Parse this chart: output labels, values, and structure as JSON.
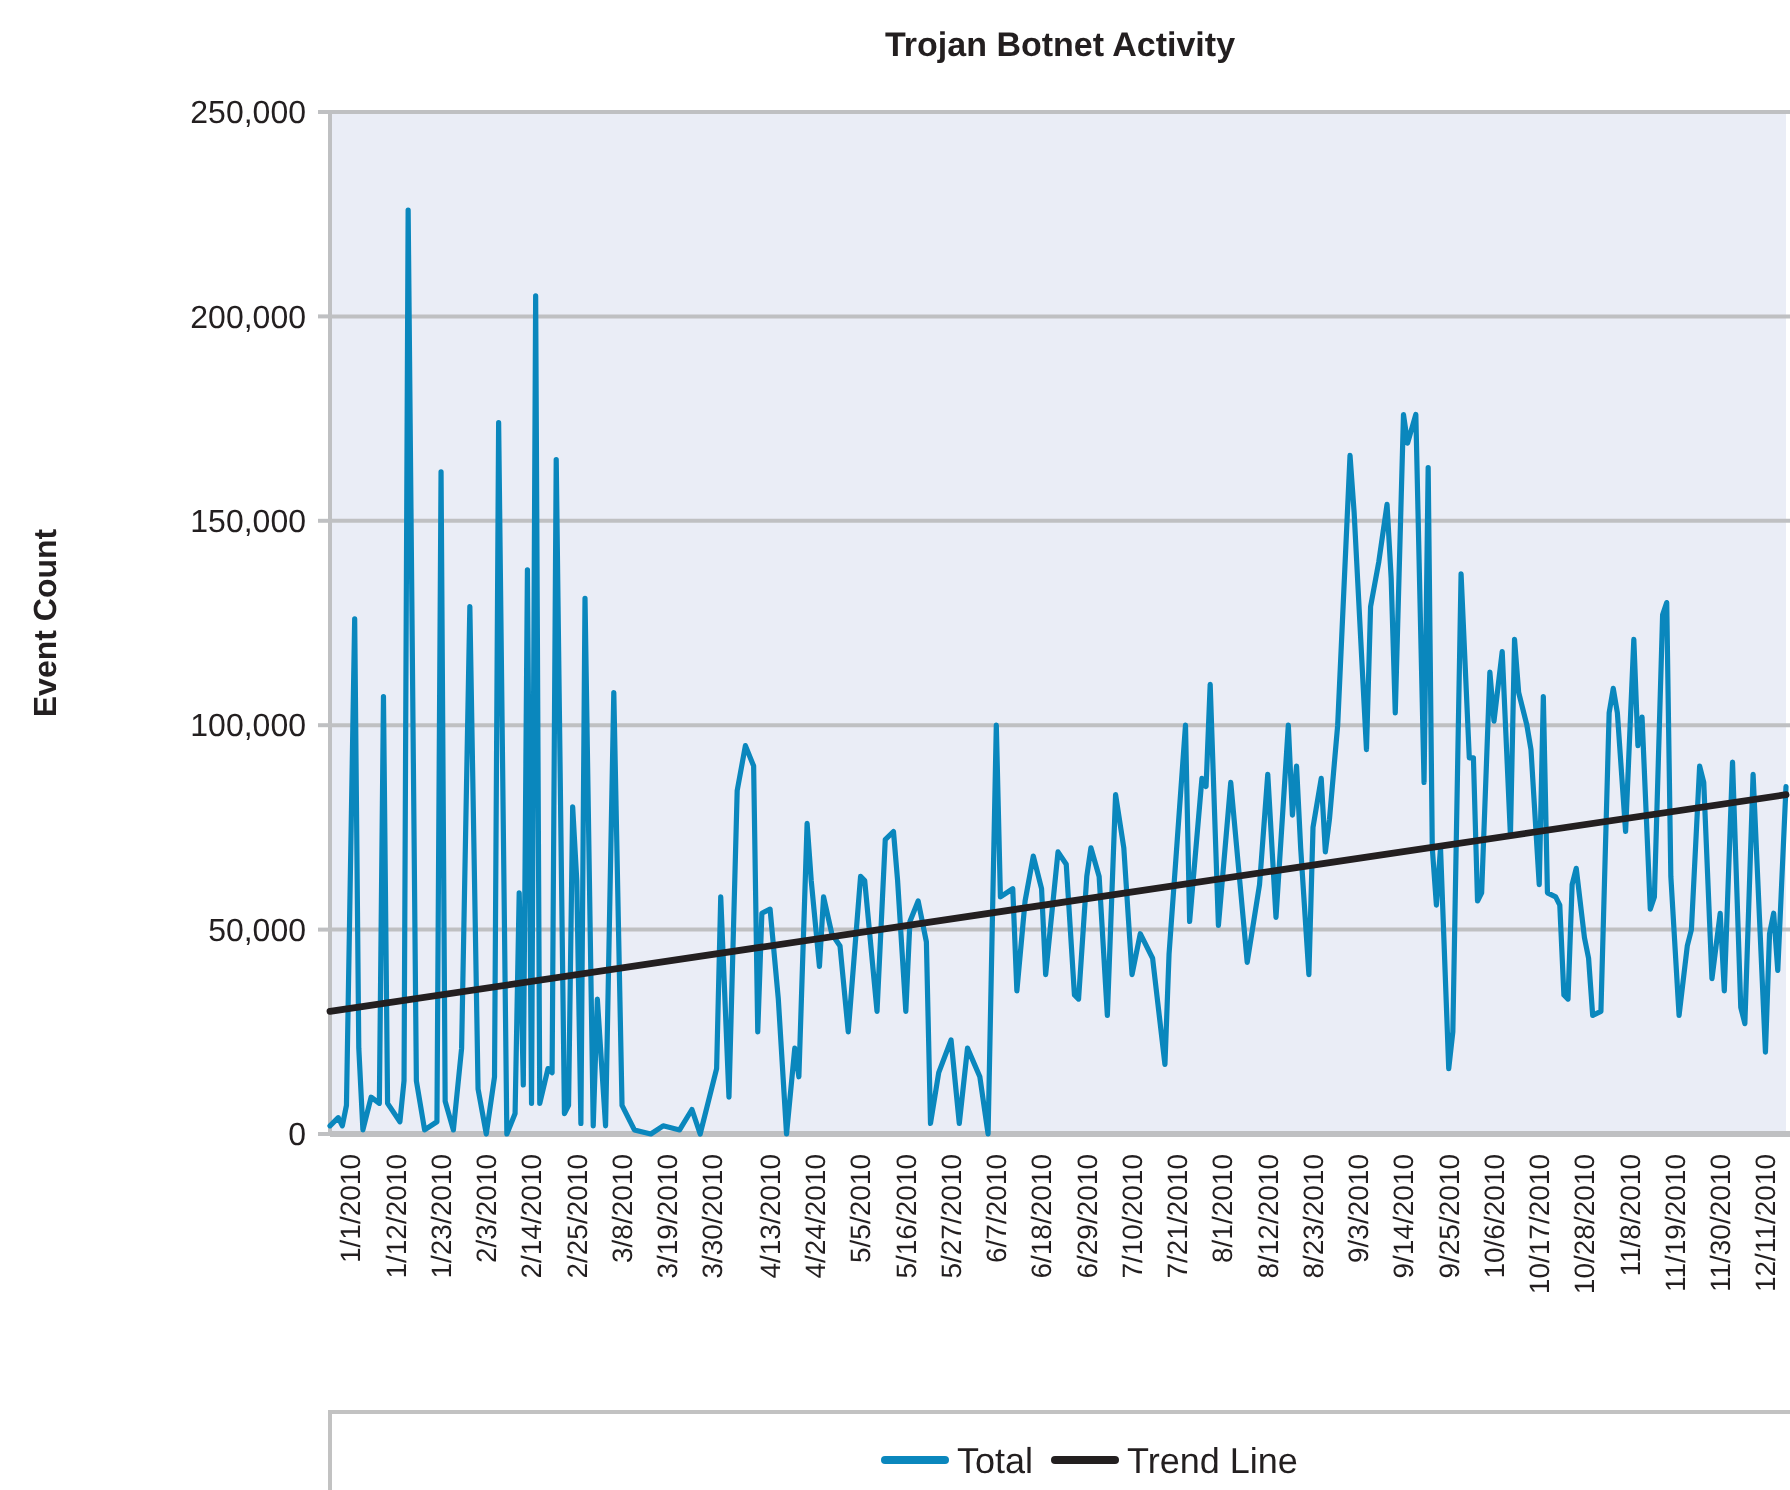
{
  "chart_data": {
    "type": "line",
    "title": "Trojan Botnet Activity",
    "ylabel": "Event Count",
    "xlim": [
      "2009-12-27",
      "2010-12-16"
    ],
    "xticks": [
      {
        "value": "2010-01-01",
        "label": "1/1/2010"
      },
      {
        "value": "2010-01-12",
        "label": "1/12/2010"
      },
      {
        "value": "2010-01-23",
        "label": "1/23/2010"
      },
      {
        "value": "2010-02-03",
        "label": "2/3/2010"
      },
      {
        "value": "2010-02-14",
        "label": "2/14/2010"
      },
      {
        "value": "2010-02-25",
        "label": "2/25/2010"
      },
      {
        "value": "2010-03-08",
        "label": "3/8/2010"
      },
      {
        "value": "2010-03-19",
        "label": "3/19/2010"
      },
      {
        "value": "2010-03-30",
        "label": "3/30/2010"
      },
      {
        "value": "2010-04-13",
        "label": "4/13/2010"
      },
      {
        "value": "2010-04-24",
        "label": "4/24/2010"
      },
      {
        "value": "2010-05-05",
        "label": "5/5/2010"
      },
      {
        "value": "2010-05-16",
        "label": "5/16/2010"
      },
      {
        "value": "2010-05-27",
        "label": "5/27/2010"
      },
      {
        "value": "2010-06-07",
        "label": "6/7/2010"
      },
      {
        "value": "2010-06-18",
        "label": "6/18/2010"
      },
      {
        "value": "2010-06-29",
        "label": "6/29/2010"
      },
      {
        "value": "2010-07-10",
        "label": "7/10/2010"
      },
      {
        "value": "2010-07-21",
        "label": "7/21/2010"
      },
      {
        "value": "2010-08-01",
        "label": "8/1/2010"
      },
      {
        "value": "2010-08-12",
        "label": "8/12/2010"
      },
      {
        "value": "2010-08-23",
        "label": "8/23/2010"
      },
      {
        "value": "2010-09-03",
        "label": "9/3/2010"
      },
      {
        "value": "2010-09-14",
        "label": "9/14/2010"
      },
      {
        "value": "2010-09-25",
        "label": "9/25/2010"
      },
      {
        "value": "2010-10-06",
        "label": "10/6/2010"
      },
      {
        "value": "2010-10-17",
        "label": "10/17/2010"
      },
      {
        "value": "2010-10-28",
        "label": "10/28/2010"
      },
      {
        "value": "2010-11-08",
        "label": "11/8/2010"
      },
      {
        "value": "2010-11-19",
        "label": "11/19/2010"
      },
      {
        "value": "2010-11-30",
        "label": "11/30/2010"
      },
      {
        "value": "2010-12-11",
        "label": "12/11/2010"
      }
    ],
    "ylim": [
      0,
      250000
    ],
    "yticks": [
      {
        "value": 0,
        "label": "0"
      },
      {
        "value": 50000,
        "label": "50,000"
      },
      {
        "value": 100000,
        "label": "100,000"
      },
      {
        "value": 150000,
        "label": "150,000"
      },
      {
        "value": 200000,
        "label": "200,000"
      },
      {
        "value": 250000,
        "label": "250,000"
      }
    ],
    "grid": "y",
    "legend": "bottom",
    "marker": "none",
    "series": [
      {
        "name": "Total",
        "color": "#0a87bd",
        "x": [
          "2009-12-27",
          "2009-12-29",
          "2009-12-30",
          "2009-12-31",
          "2010-01-02",
          "2010-01-03",
          "2010-01-04",
          "2010-01-06",
          "2010-01-08",
          "2010-01-09",
          "2010-01-10",
          "2010-01-13",
          "2010-01-14",
          "2010-01-15",
          "2010-01-17",
          "2010-01-19",
          "2010-01-22",
          "2010-01-23",
          "2010-01-24",
          "2010-01-26",
          "2010-01-28",
          "2010-01-30",
          "2010-02-01",
          "2010-02-03",
          "2010-02-05",
          "2010-02-06",
          "2010-02-08",
          "2010-02-10",
          "2010-02-11",
          "2010-02-12",
          "2010-02-13",
          "2010-02-14",
          "2010-02-15",
          "2010-02-16",
          "2010-02-18",
          "2010-02-19",
          "2010-02-20",
          "2010-02-22",
          "2010-02-23",
          "2010-02-24",
          "2010-02-25",
          "2010-02-26",
          "2010-02-27",
          "2010-03-01",
          "2010-03-02",
          "2010-03-04",
          "2010-03-06",
          "2010-03-08",
          "2010-03-11",
          "2010-03-15",
          "2010-03-18",
          "2010-03-22",
          "2010-03-25",
          "2010-03-27",
          "2010-03-29",
          "2010-03-31",
          "2010-04-01",
          "2010-04-03",
          "2010-04-05",
          "2010-04-07",
          "2010-04-09",
          "2010-04-10",
          "2010-04-11",
          "2010-04-13",
          "2010-04-15",
          "2010-04-17",
          "2010-04-19",
          "2010-04-20",
          "2010-04-22",
          "2010-04-23",
          "2010-04-25",
          "2010-04-26",
          "2010-04-28",
          "2010-04-30",
          "2010-05-02",
          "2010-05-05",
          "2010-05-06",
          "2010-05-09",
          "2010-05-11",
          "2010-05-13",
          "2010-05-14",
          "2010-05-16",
          "2010-05-17",
          "2010-05-19",
          "2010-05-21",
          "2010-05-22",
          "2010-05-24",
          "2010-05-27",
          "2010-05-29",
          "2010-05-31",
          "2010-06-03",
          "2010-06-05",
          "2010-06-07",
          "2010-06-08",
          "2010-06-11",
          "2010-06-12",
          "2010-06-14",
          "2010-06-16",
          "2010-06-18",
          "2010-06-19",
          "2010-06-22",
          "2010-06-24",
          "2010-06-26",
          "2010-06-27",
          "2010-06-29",
          "2010-06-30",
          "2010-07-02",
          "2010-07-04",
          "2010-07-06",
          "2010-07-08",
          "2010-07-10",
          "2010-07-12",
          "2010-07-15",
          "2010-07-18",
          "2010-07-19",
          "2010-07-21",
          "2010-07-23",
          "2010-07-24",
          "2010-07-27",
          "2010-07-28",
          "2010-07-29",
          "2010-07-31",
          "2010-08-03",
          "2010-08-05",
          "2010-08-07",
          "2010-08-10",
          "2010-08-12",
          "2010-08-14",
          "2010-08-17",
          "2010-08-18",
          "2010-08-19",
          "2010-08-20",
          "2010-08-22",
          "2010-08-23",
          "2010-08-25",
          "2010-08-26",
          "2010-08-27",
          "2010-08-29",
          "2010-09-01",
          "2010-09-02",
          "2010-09-05",
          "2010-09-06",
          "2010-09-08",
          "2010-09-10",
          "2010-09-11",
          "2010-09-12",
          "2010-09-14",
          "2010-09-15",
          "2010-09-17",
          "2010-09-19",
          "2010-09-20",
          "2010-09-21",
          "2010-09-22",
          "2010-09-23",
          "2010-09-25",
          "2010-09-26",
          "2010-09-28",
          "2010-09-30",
          "2010-10-01",
          "2010-10-02",
          "2010-10-03",
          "2010-10-05",
          "2010-10-06",
          "2010-10-08",
          "2010-10-10",
          "2010-10-11",
          "2010-10-12",
          "2010-10-14",
          "2010-10-15",
          "2010-10-17",
          "2010-10-18",
          "2010-10-19",
          "2010-10-21",
          "2010-10-22",
          "2010-10-23",
          "2010-10-24",
          "2010-10-25",
          "2010-10-26",
          "2010-10-28",
          "2010-10-29",
          "2010-10-30",
          "2010-11-01",
          "2010-11-03",
          "2010-11-04",
          "2010-11-05",
          "2010-11-07",
          "2010-11-09",
          "2010-11-10",
          "2010-11-11",
          "2010-11-13",
          "2010-11-14",
          "2010-11-16",
          "2010-11-17",
          "2010-11-18",
          "2010-11-20",
          "2010-11-22",
          "2010-11-23",
          "2010-11-25",
          "2010-11-26",
          "2010-11-28",
          "2010-11-30",
          "2010-12-01",
          "2010-12-03",
          "2010-12-05",
          "2010-12-06",
          "2010-12-08",
          "2010-12-11",
          "2010-12-12",
          "2010-12-13",
          "2010-12-14",
          "2010-12-16"
        ],
        "values": [
          2000,
          4000,
          2000,
          7000,
          126000,
          21000,
          1000,
          9000,
          7500,
          107000,
          7500,
          3000,
          13000,
          226000,
          13000,
          1000,
          3000,
          162000,
          8000,
          1000,
          21000,
          129000,
          11000,
          0,
          14000,
          174000,
          0,
          5000,
          59000,
          12000,
          138000,
          7500,
          205000,
          7500,
          16000,
          15000,
          165000,
          5000,
          7000,
          80000,
          62000,
          2600,
          131000,
          2000,
          33000,
          2000,
          108000,
          7000,
          1000,
          0,
          2000,
          1000,
          6000,
          0,
          8000,
          16000,
          58000,
          9000,
          84000,
          95000,
          90000,
          25000,
          54000,
          55000,
          33000,
          0,
          21000,
          14000,
          76000,
          62000,
          41000,
          58000,
          49000,
          46000,
          25000,
          63000,
          62000,
          30000,
          72000,
          74000,
          62000,
          30000,
          52000,
          57000,
          47000,
          2600,
          15000,
          23000,
          2600,
          21000,
          14000,
          0,
          100000,
          58000,
          60000,
          35000,
          57000,
          68000,
          60000,
          39000,
          69000,
          66000,
          34000,
          33000,
          63000,
          70000,
          63000,
          29000,
          83000,
          70000,
          39000,
          49000,
          43000,
          17000,
          44000,
          72000,
          100000,
          52000,
          87000,
          85000,
          110000,
          51000,
          86000,
          64000,
          42000,
          61000,
          88000,
          53000,
          100000,
          78000,
          90000,
          70000,
          39000,
          75000,
          87000,
          69000,
          77000,
          100000,
          166000,
          152000,
          94000,
          129000,
          140000,
          154000,
          136000,
          103000,
          176000,
          169000,
          176000,
          86000,
          163000,
          70000,
          56000,
          70000,
          16000,
          25000,
          137000,
          92000,
          92000,
          57000,
          59000,
          113000,
          101000,
          118000,
          73000,
          121000,
          108000,
          100000,
          94000,
          61000,
          107000,
          59000,
          58000,
          56000,
          34000,
          33000,
          61000,
          65000,
          48000,
          43000,
          29000,
          30000,
          103000,
          109000,
          103000,
          74000,
          121000,
          95000,
          102000,
          55000,
          58000,
          127000,
          130000,
          63000,
          29000,
          46000,
          50000,
          90000,
          86000,
          38000,
          54000,
          35000,
          91000,
          31000,
          27000,
          88000,
          20000,
          49000,
          54000,
          40000,
          85000
        ]
      },
      {
        "name": "Trend Line",
        "color": "#231f20",
        "x": [
          "2009-12-27",
          "2010-12-16"
        ],
        "values": [
          30000,
          83000
        ]
      }
    ]
  }
}
